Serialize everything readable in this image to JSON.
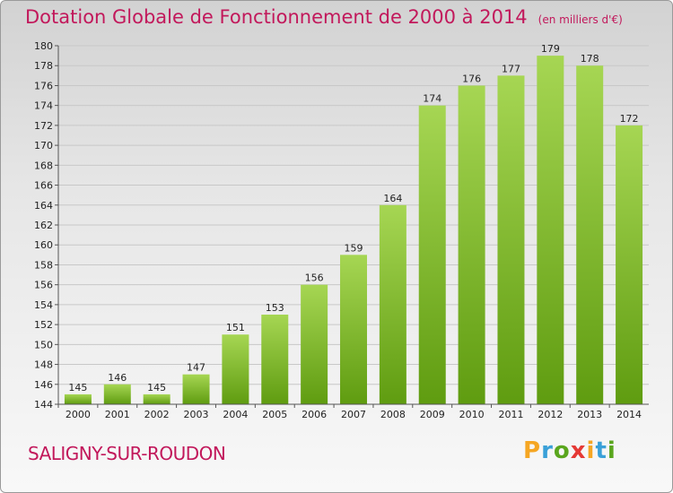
{
  "header": {
    "title": "Dotation Globale de Fonctionnement de 2000 à 2014",
    "unit": "(en milliers d'€)"
  },
  "footer": {
    "commune": "SALIGNY-SUR-ROUDON",
    "logo_letters": [
      "P",
      "r",
      "o",
      "x",
      "i",
      "t",
      "i"
    ],
    "logo_colors": [
      "#f5a623",
      "#3aa0d8",
      "#5aa61e",
      "#e53935",
      "#f5a623",
      "#3aa0d8",
      "#5aa61e"
    ]
  },
  "colors": {
    "title": "#c2185b",
    "bar_light": "#a6d653",
    "bar_dark": "#5f9c10",
    "grid": "#c8c8c8"
  },
  "chart_data": {
    "type": "bar",
    "categories": [
      "2000",
      "2001",
      "2002",
      "2003",
      "2004",
      "2005",
      "2006",
      "2007",
      "2008",
      "2009",
      "2010",
      "2011",
      "2012",
      "2013",
      "2014"
    ],
    "values": [
      145,
      146,
      145,
      147,
      151,
      153,
      156,
      159,
      164,
      174,
      176,
      177,
      179,
      178,
      172
    ],
    "data_labels": [
      "145",
      "146",
      "145",
      "147",
      "151",
      "153",
      "156",
      "159",
      "164",
      "174",
      "176",
      "177",
      "179",
      "178",
      "172"
    ],
    "yticks": [
      "144",
      "146",
      "148",
      "150",
      "152",
      "154",
      "156",
      "158",
      "160",
      "162",
      "164",
      "166",
      "168",
      "170",
      "172",
      "174",
      "176",
      "178",
      "180"
    ],
    "ylim": [
      144,
      180
    ],
    "grid": true
  }
}
